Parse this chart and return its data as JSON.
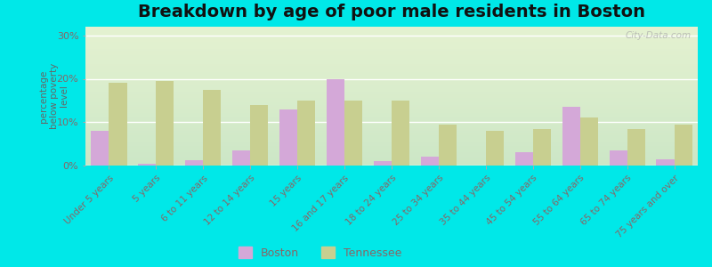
{
  "title": "Breakdown by age of poor male residents in Boston",
  "ylabel": "percentage\nbelow poverty\nlevel",
  "categories": [
    "Under 5 years",
    "5 years",
    "6 to 11 years",
    "12 to 14 years",
    "15 years",
    "16 and 17 years",
    "18 to 24 years",
    "25 to 34 years",
    "35 to 44 years",
    "45 to 54 years",
    "55 to 64 years",
    "65 to 74 years",
    "75 years and over"
  ],
  "boston_values": [
    8.0,
    0.5,
    1.2,
    3.5,
    13.0,
    20.0,
    1.0,
    2.0,
    0.0,
    3.0,
    13.5,
    3.5,
    1.5
  ],
  "tennessee_values": [
    19.0,
    19.5,
    17.5,
    14.0,
    15.0,
    15.0,
    15.0,
    9.5,
    8.0,
    8.5,
    11.0,
    8.5,
    9.5
  ],
  "boston_color": "#d4a8d8",
  "tennessee_color": "#c8cf90",
  "outer_bg": "#00e8e8",
  "plot_bg_color": "#e8f2e0",
  "ylim": [
    0,
    32
  ],
  "yticks": [
    0,
    10,
    20,
    30
  ],
  "ytick_labels": [
    "0%",
    "10%",
    "20%",
    "30%"
  ],
  "title_fontsize": 14,
  "bar_width": 0.38,
  "legend_boston": "Boston",
  "legend_tennessee": "Tennessee",
  "tick_color": "#886666",
  "ylabel_color": "#666666",
  "watermark": "City-Data.com"
}
